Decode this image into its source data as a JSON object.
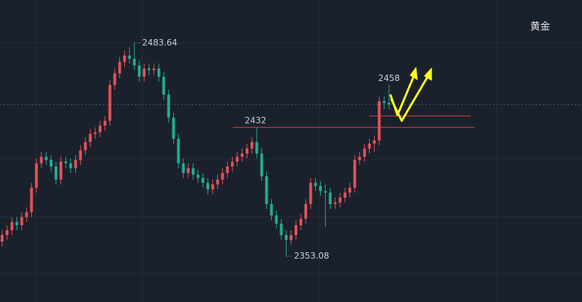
{
  "chart_data": {
    "type": "candlestick",
    "title": "黄金",
    "up_color": "#e0525c",
    "down_color": "#22ab94",
    "level_color": "#d9434b",
    "last_color": "#4a6a72",
    "ylim": [
      2325,
      2510
    ],
    "levels": [
      2432,
      2439
    ],
    "candles": [
      [
        2362,
        2369,
        2359,
        2366
      ],
      [
        2366,
        2372,
        2363,
        2369
      ],
      [
        2369,
        2377,
        2366,
        2374
      ],
      [
        2374,
        2377,
        2369,
        2372
      ],
      [
        2372,
        2380,
        2369,
        2377
      ],
      [
        2377,
        2383,
        2374,
        2380
      ],
      [
        2380,
        2398,
        2377,
        2395
      ],
      [
        2395,
        2413,
        2392,
        2410
      ],
      [
        2410,
        2417,
        2407,
        2414
      ],
      [
        2414,
        2417,
        2409,
        2412
      ],
      [
        2412,
        2415,
        2405,
        2408
      ],
      [
        2408,
        2411,
        2397,
        2400
      ],
      [
        2400,
        2414,
        2397,
        2411
      ],
      [
        2411,
        2414,
        2407,
        2410
      ],
      [
        2410,
        2413,
        2404,
        2407
      ],
      [
        2407,
        2415,
        2404,
        2412
      ],
      [
        2412,
        2421,
        2409,
        2418
      ],
      [
        2418,
        2426,
        2415,
        2423
      ],
      [
        2423,
        2431,
        2420,
        2428
      ],
      [
        2428,
        2432,
        2425,
        2429
      ],
      [
        2429,
        2436,
        2426,
        2433
      ],
      [
        2433,
        2439,
        2430,
        2436
      ],
      [
        2436,
        2461,
        2433,
        2458
      ],
      [
        2458,
        2468,
        2455,
        2465
      ],
      [
        2465,
        2475,
        2462,
        2472
      ],
      [
        2472,
        2479,
        2469,
        2476
      ],
      [
        2476,
        2481,
        2471,
        2474
      ],
      [
        2474,
        2483.64,
        2467,
        2470
      ],
      [
        2470,
        2473,
        2460,
        2463
      ],
      [
        2463,
        2471,
        2460,
        2468
      ],
      [
        2468,
        2471,
        2464,
        2467
      ],
      [
        2467,
        2471,
        2464,
        2468
      ],
      [
        2468,
        2471,
        2460,
        2463
      ],
      [
        2463,
        2466,
        2449,
        2452
      ],
      [
        2452,
        2455,
        2435,
        2438
      ],
      [
        2438,
        2441,
        2422,
        2425
      ],
      [
        2425,
        2428,
        2407,
        2410
      ],
      [
        2410,
        2413,
        2401,
        2404
      ],
      [
        2404,
        2410,
        2401,
        2407
      ],
      [
        2407,
        2410,
        2400,
        2403
      ],
      [
        2403,
        2406,
        2398,
        2401
      ],
      [
        2401,
        2404,
        2395,
        2398
      ],
      [
        2398,
        2401,
        2391,
        2394
      ],
      [
        2394,
        2400,
        2391,
        2397
      ],
      [
        2397,
        2403,
        2394,
        2400
      ],
      [
        2400,
        2407,
        2397,
        2404
      ],
      [
        2404,
        2411,
        2401,
        2408
      ],
      [
        2408,
        2414,
        2405,
        2411
      ],
      [
        2411,
        2417,
        2408,
        2414
      ],
      [
        2414,
        2419,
        2411,
        2416
      ],
      [
        2416,
        2422,
        2413,
        2419
      ],
      [
        2419,
        2426,
        2416,
        2423
      ],
      [
        2423,
        2432,
        2413,
        2416
      ],
      [
        2416,
        2419,
        2399,
        2402
      ],
      [
        2402,
        2405,
        2382,
        2385
      ],
      [
        2385,
        2388,
        2375,
        2378
      ],
      [
        2378,
        2381,
        2370,
        2373
      ],
      [
        2373,
        2376,
        2363,
        2366
      ],
      [
        2366,
        2369,
        2353.08,
        2363
      ],
      [
        2363,
        2369,
        2360,
        2366
      ],
      [
        2366,
        2375,
        2363,
        2372
      ],
      [
        2372,
        2379,
        2369,
        2376
      ],
      [
        2376,
        2388,
        2373,
        2385
      ],
      [
        2385,
        2401,
        2382,
        2398
      ],
      [
        2398,
        2401,
        2393,
        2396
      ],
      [
        2396,
        2399,
        2390,
        2393
      ],
      [
        2393,
        2397,
        2371,
        2392
      ],
      [
        2392,
        2395,
        2382,
        2385
      ],
      [
        2385,
        2389,
        2382,
        2386
      ],
      [
        2386,
        2392,
        2383,
        2389
      ],
      [
        2389,
        2395,
        2386,
        2392
      ],
      [
        2392,
        2398,
        2389,
        2395
      ],
      [
        2395,
        2415,
        2392,
        2412
      ],
      [
        2412,
        2417,
        2409,
        2414
      ],
      [
        2414,
        2422,
        2411,
        2419
      ],
      [
        2419,
        2425,
        2416,
        2422
      ],
      [
        2422,
        2427,
        2417,
        2424
      ],
      [
        2424,
        2451,
        2421,
        2448
      ],
      [
        2448,
        2451,
        2443,
        2447
      ],
      [
        2447,
        2458,
        2443,
        2446
      ]
    ]
  }
}
